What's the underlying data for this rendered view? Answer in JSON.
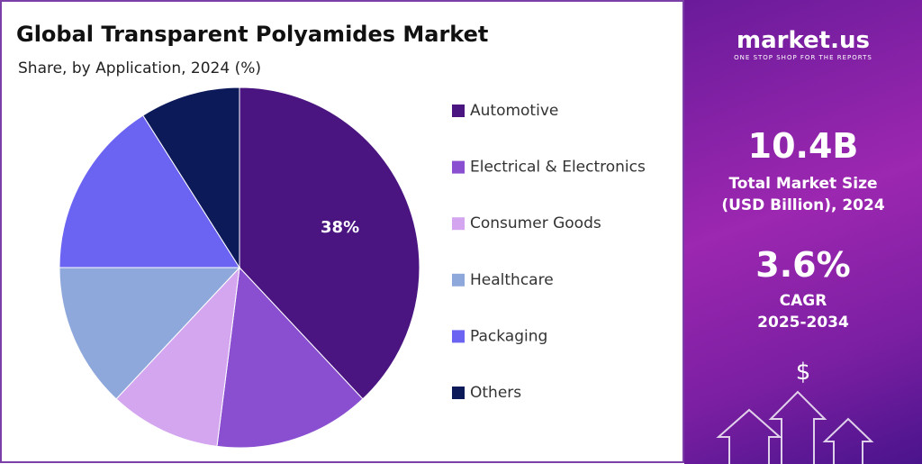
{
  "chart_data": {
    "type": "pie",
    "title": "Global Transparent Polyamides Market",
    "subtitle": "Share, by Application, 2024 (%)",
    "categories": [
      "Automotive",
      "Electrical & Electronics",
      "Consumer Goods",
      "Healthcare",
      "Packaging",
      "Others"
    ],
    "values": [
      38,
      14,
      10,
      13,
      16,
      9
    ],
    "value_labels": [
      "38%",
      null,
      null,
      null,
      null,
      null
    ],
    "colors": [
      "#4a1580",
      "#8a4fd0",
      "#d5a6f0",
      "#8fa8dc",
      "#6b63f2",
      "#0c1a5a"
    ]
  },
  "panel": {
    "brand": "market.us",
    "tagline": "ONE STOP SHOP FOR THE REPORTS",
    "market_size": "10.4B",
    "market_size_label": "Total Market Size (USD Billion), 2024",
    "cagr": "3.6%",
    "cagr_label": "CAGR",
    "cagr_period": "2025-2034",
    "currency_icon": "$"
  }
}
